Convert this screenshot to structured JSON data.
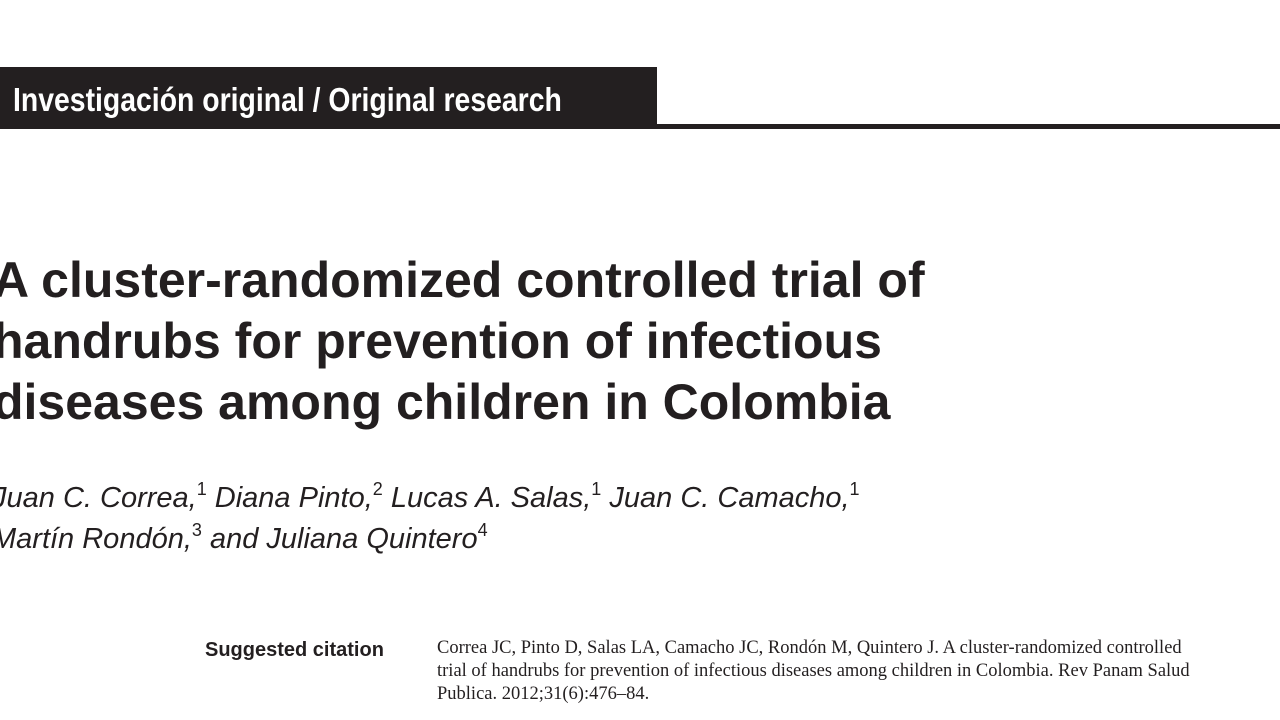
{
  "section": {
    "label": "Investigación original / Original research"
  },
  "article": {
    "title_lines": [
      "A cluster-randomized controlled trial of",
      "handrubs for prevention of infectious",
      "diseases among children in Colombia"
    ],
    "authors": [
      {
        "name": "Juan C. Correa,",
        "affiliation": "1"
      },
      {
        "name": "Diana Pinto,",
        "affiliation": "2"
      },
      {
        "name": "Lucas A. Salas,",
        "affiliation": "1"
      },
      {
        "name": "Juan C. Camacho,",
        "affiliation": "1"
      },
      {
        "name": "Martín Rondón,",
        "affiliation": "3"
      },
      {
        "name": "and Juliana Quintero",
        "affiliation": "4"
      }
    ]
  },
  "citation": {
    "label": "Suggested citation",
    "lines": [
      "Correa JC, Pinto D, Salas LA, Camacho JC, Rondón M, Quintero J. A cluster-randomized controlled",
      "trial of handrubs for prevention of infectious diseases among children in Colombia. Rev Panam Salud",
      "Publica. 2012;31(6):476–84."
    ]
  }
}
